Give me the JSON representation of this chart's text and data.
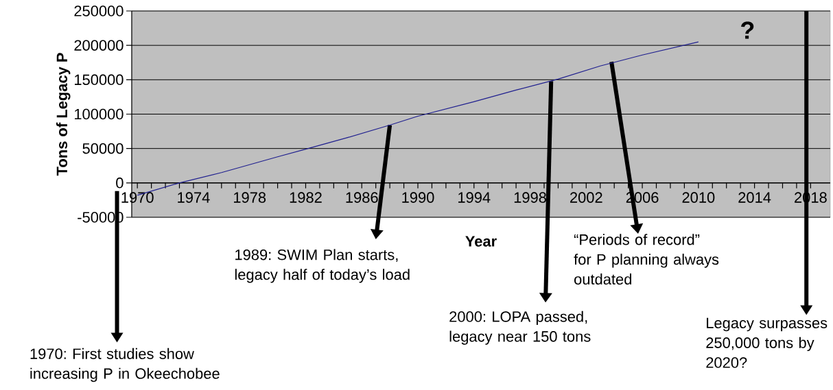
{
  "chart_data": {
    "type": "line",
    "xlabel": "Year",
    "ylabel": "Tons of Legacy P",
    "x": [
      1970,
      1973,
      1976,
      1980,
      1982,
      1985,
      1988,
      1990,
      1994,
      1997,
      2000,
      2003,
      2006,
      2010
    ],
    "values": [
      -18000,
      0,
      15000,
      38000,
      49000,
      66000,
      84000,
      97000,
      118000,
      135000,
      151000,
      170000,
      186000,
      205000
    ],
    "color": "#1f1f8f",
    "xlim": [
      1969.6,
      2019.4
    ],
    "ylim": [
      -50000,
      250000
    ],
    "xticks": [
      1970,
      1974,
      1978,
      1982,
      1986,
      1990,
      1994,
      1998,
      2002,
      2006,
      2010,
      2014,
      2018
    ],
    "yticks": [
      -50000,
      0,
      50000,
      100000,
      150000,
      200000,
      250000
    ],
    "grid": "y",
    "marker": "none",
    "annotations": [
      "1970: First studies show increasing P in Okeechobee",
      {
        "text": "1989: SWIM Plan starts, legacy half of today’s load",
        "x": 1988,
        "y": 84000
      },
      {
        "text": "2000: LOPA passed, legacy near 150 tons",
        "x": 1999.5,
        "y": 148000
      },
      {
        "text": "“Periods of record” for P planning always outdated",
        "x": 2003.8,
        "y": 176000
      },
      "Legacy surpasses 250,000 tons by 2020?",
      "?"
    ]
  }
}
